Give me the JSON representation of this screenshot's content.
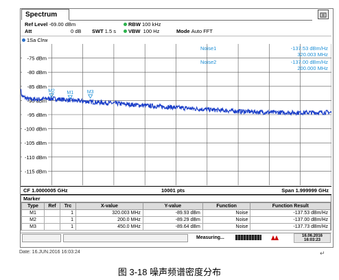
{
  "window": {
    "tab_title": "Spectrum"
  },
  "header": {
    "ref_level_label": "Ref Level",
    "ref_level_value": "-69.00 dBm",
    "att_label": "Att",
    "att_value": "0 dB",
    "swt_label": "SWT",
    "swt_value": "1.5 s",
    "rbw_label": "RBW",
    "rbw_value": "100 kHz",
    "vbw_label": "VBW",
    "vbw_value": "100 Hz",
    "mode_label": "Mode",
    "mode_value": "Auto FFT"
  },
  "trace_label": "1Sa Clrw",
  "noise_markers": [
    {
      "label": "Noise1",
      "value": "-137.53 dBm/Hz",
      "freq": "320.003 MHz"
    },
    {
      "label": "Noise2",
      "value": "-137.00 dBm/Hz",
      "freq": "200.000 MHz"
    }
  ],
  "chart_data": {
    "type": "line",
    "x_start_mhz": 1.000000005,
    "x_span_mhz": 1999.999,
    "ylim": [
      -120,
      -70
    ],
    "y_ticks": [
      "-75 dBm",
      "-80 dBm",
      "-85 dBm",
      "-90 dBm",
      "-95 dBm",
      "-100 dBm",
      "-105 dBm",
      "-110 dBm",
      "-115 dBm"
    ],
    "y_tick_values": [
      -75,
      -80,
      -85,
      -90,
      -95,
      -100,
      -105,
      -110,
      -115
    ],
    "grid": true,
    "series": [
      {
        "points": [
          [
            1,
            -86
          ],
          [
            10,
            -88.5
          ],
          [
            50,
            -89.5
          ],
          [
            100,
            -89.6
          ],
          [
            200,
            -89.3
          ],
          [
            300,
            -89.8
          ],
          [
            450,
            -90.5
          ],
          [
            600,
            -91
          ],
          [
            800,
            -91.8
          ],
          [
            1000,
            -92.5
          ],
          [
            1200,
            -93.2
          ],
          [
            1400,
            -93.8
          ],
          [
            1600,
            -94.2
          ],
          [
            1800,
            -94.3
          ],
          [
            2000,
            -94.2
          ]
        ]
      }
    ],
    "markers": [
      {
        "name": "M2",
        "x": 200,
        "y": -89.29
      },
      {
        "name": "M1",
        "x": 320.003,
        "y": -89.93
      },
      {
        "name": "M3",
        "x": 450,
        "y": -89.64
      }
    ],
    "color_trace": "#1a3ec8",
    "color_marker": "#1d8fd6"
  },
  "bottom_bar": {
    "left": "CF 1.0000005 GHz",
    "center": "10001 pts",
    "right": "Span 1.999999 GHz"
  },
  "marker_table": {
    "title": "Marker",
    "headers": [
      "Type",
      "Ref",
      "Trc",
      "X-value",
      "Y-value",
      "Function",
      "Function Result"
    ],
    "rows": [
      [
        "M1",
        "",
        "1",
        "320.003 MHz",
        "-89.93 dBm",
        "Noise",
        "-137.53 dBm/Hz"
      ],
      [
        "M2",
        "",
        "1",
        "200.0 MHz",
        "-89.29 dBm",
        "Noise",
        "-137.00 dBm/Hz"
      ],
      [
        "M3",
        "",
        "1",
        "450.0 MHz",
        "-89.64 dBm",
        "Noise",
        "-137.73 dBm/Hz"
      ]
    ]
  },
  "status": {
    "measuring": "Measuring...",
    "date": "16.06.2016",
    "time": "16:03:23"
  },
  "date_line": "Date: 16.JUN.2016  16:03:24",
  "caption": "图  3-18 噪声频谱密度分布"
}
